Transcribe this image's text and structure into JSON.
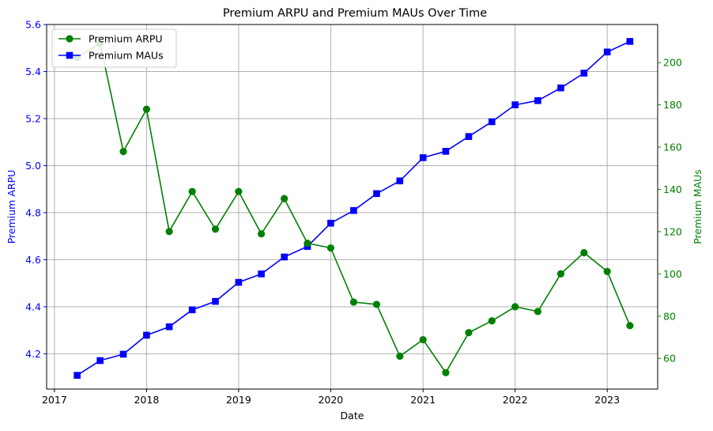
{
  "chart_data": {
    "type": "line",
    "title": "Premium ARPU and Premium MAUs Over Time",
    "xlabel": "Date",
    "ylabel_left": "Premium ARPU",
    "ylabel_right": "Premium MAUs",
    "x_ticks": [
      "2017",
      "2018",
      "2019",
      "2020",
      "2021",
      "2022",
      "2023"
    ],
    "y_left_ticks": [
      "4.2",
      "4.4",
      "4.6",
      "4.8",
      "5.0",
      "5.2",
      "5.4",
      "5.6"
    ],
    "y_right_ticks": [
      "60",
      "80",
      "100",
      "120",
      "140",
      "160",
      "180",
      "200"
    ],
    "xlim": [
      "2016-12-01",
      "2023-07-20"
    ],
    "ylim_left": [
      4.05,
      5.6
    ],
    "ylim_right": [
      45.5,
      218
    ],
    "grid": true,
    "legend_position": "top-left",
    "x": [
      "2017-04-01",
      "2017-07-01",
      "2017-10-01",
      "2018-01-01",
      "2018-04-01",
      "2018-07-01",
      "2018-10-01",
      "2019-01-01",
      "2019-04-01",
      "2019-07-01",
      "2019-10-01",
      "2020-01-01",
      "2020-04-01",
      "2020-07-01",
      "2020-10-01",
      "2021-01-01",
      "2021-04-01",
      "2021-07-01",
      "2021-10-01",
      "2022-01-01",
      "2022-04-01",
      "2022-07-01",
      "2022-10-01",
      "2023-01-01",
      "2023-04-01"
    ],
    "series": [
      {
        "name": "Premium ARPU",
        "axis": "left",
        "color": "#008000",
        "marker": "circle",
        "values": [
          5.46,
          5.52,
          5.06,
          5.24,
          4.72,
          4.89,
          4.73,
          4.89,
          4.71,
          4.86,
          4.67,
          4.65,
          4.42,
          4.41,
          4.19,
          4.26,
          4.12,
          4.29,
          4.34,
          4.4,
          4.38,
          4.54,
          4.63,
          4.55,
          4.32
        ]
      },
      {
        "name": "Premium MAUs",
        "axis": "right",
        "color": "#0000ff",
        "marker": "square",
        "values": [
          52,
          59,
          62,
          71,
          75,
          83,
          87,
          96,
          100,
          108,
          113,
          124,
          130,
          138,
          144,
          155,
          158,
          165,
          172,
          180,
          182,
          188,
          195,
          205,
          210
        ]
      }
    ],
    "left_axis_color": "#0000ff",
    "right_axis_color": "#008000"
  }
}
